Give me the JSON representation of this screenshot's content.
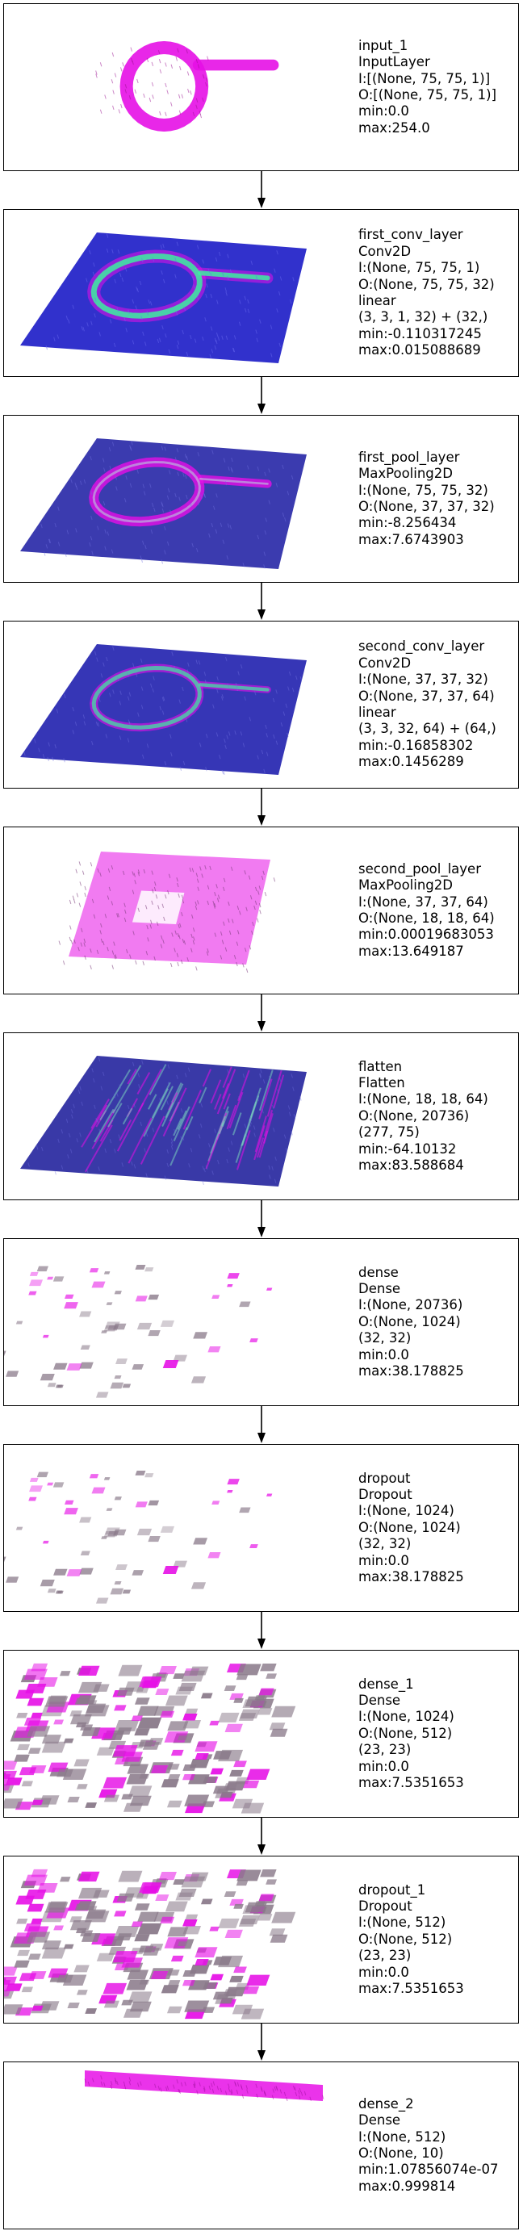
{
  "layers": [
    {
      "name": "input_1",
      "type": "InputLayer",
      "lines": [
        "I:[(None, 75, 75, 1)]",
        "O:[(None, 75, 75, 1)]",
        "min:0.0",
        "max:254.0"
      ],
      "viz": "input"
    },
    {
      "name": "first_conv_layer",
      "type": "Conv2D",
      "lines": [
        "I:(None, 75, 75, 1)",
        "O:(None, 75, 75, 32)",
        "linear",
        "(3, 3, 1, 32) + (32,)",
        "min:-0.110317245",
        "max:0.015088689"
      ],
      "viz": "conv1"
    },
    {
      "name": "first_pool_layer",
      "type": "MaxPooling2D",
      "lines": [
        "I:(None, 75, 75, 32)",
        "O:(None, 37, 37, 32)",
        "min:-8.256434",
        "max:7.6743903"
      ],
      "viz": "pool1"
    },
    {
      "name": "second_conv_layer",
      "type": "Conv2D",
      "lines": [
        "I:(None, 37, 37, 32)",
        "O:(None, 37, 37, 64)",
        "linear",
        "(3, 3, 32, 64) + (64,)",
        "min:-0.16858302",
        "max:0.1456289"
      ],
      "viz": "conv2"
    },
    {
      "name": "second_pool_layer",
      "type": "MaxPooling2D",
      "lines": [
        "I:(None, 37, 37, 64)",
        "O:(None, 18, 18, 64)",
        "min:0.00019683053",
        "max:13.649187"
      ],
      "viz": "pool2"
    },
    {
      "name": "flatten",
      "type": "Flatten",
      "lines": [
        "I:(None, 18, 18, 64)",
        "O:(None, 20736)",
        "(277, 75)",
        "min:-64.10132",
        "max:83.588684"
      ],
      "viz": "flatten"
    },
    {
      "name": "dense",
      "type": "Dense",
      "lines": [
        "I:(None, 20736)",
        "O:(None, 1024)",
        "(32, 32)",
        "min:0.0",
        "max:38.178825"
      ],
      "viz": "dense"
    },
    {
      "name": "dropout",
      "type": "Dropout",
      "lines": [
        "I:(None, 1024)",
        "O:(None, 1024)",
        "(32, 32)",
        "min:0.0",
        "max:38.178825"
      ],
      "viz": "dropout"
    },
    {
      "name": "dense_1",
      "type": "Dense",
      "lines": [
        "I:(None, 1024)",
        "O:(None, 512)",
        "(23, 23)",
        "min:0.0",
        "max:7.5351653"
      ],
      "viz": "dense1"
    },
    {
      "name": "dropout_1",
      "type": "Dropout",
      "lines": [
        "I:(None, 512)",
        "O:(None, 512)",
        "(23, 23)",
        "min:0.0",
        "max:7.5351653"
      ],
      "viz": "dropout1"
    },
    {
      "name": "dense_2",
      "type": "Dense",
      "lines": [
        "I:(None, 512)",
        "O:(None, 10)",
        "min:1.07856074e-07",
        "max:0.999814"
      ],
      "viz": "dense2"
    }
  ],
  "colors": {
    "border": "#000000",
    "magenta": "#e60fe6",
    "blue": "#2020c8",
    "green": "#3cf0a0",
    "gray": "#8a7a8a"
  }
}
